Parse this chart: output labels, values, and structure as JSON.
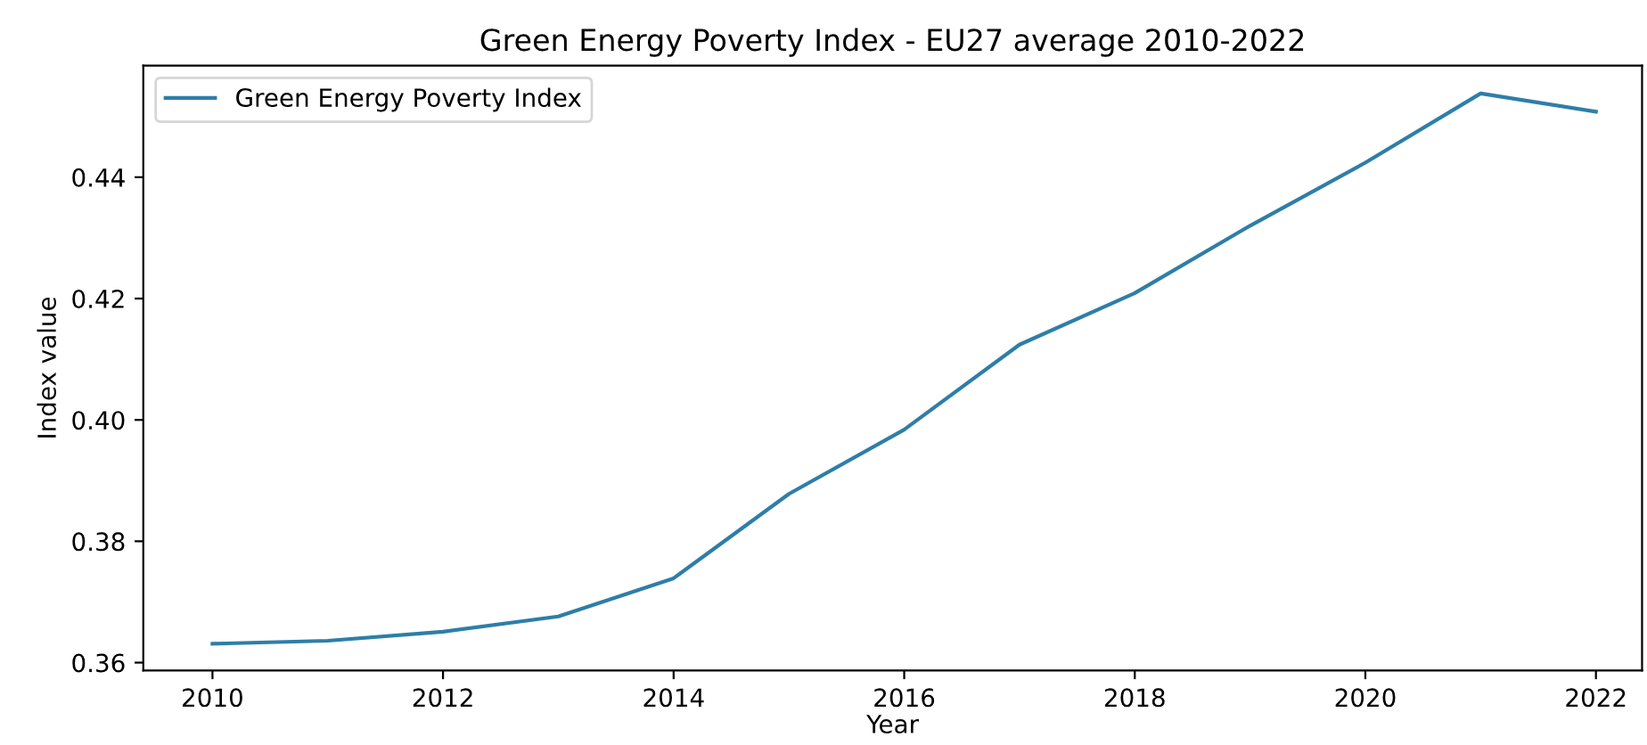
{
  "chart_data": {
    "type": "line",
    "title": "Green Energy Poverty Index - EU27 average 2010-2022",
    "xlabel": "Year",
    "ylabel": "Index value",
    "x": [
      2010,
      2011,
      2012,
      2013,
      2014,
      2015,
      2016,
      2017,
      2018,
      2019,
      2020,
      2021,
      2022
    ],
    "series": [
      {
        "name": "Green Energy Poverty Index",
        "color": "#2e7ea8",
        "values": [
          0.3631,
          0.3636,
          0.3651,
          0.3676,
          0.3739,
          0.3878,
          0.3984,
          0.4124,
          0.4209,
          0.432,
          0.4424,
          0.4538,
          0.4508
        ]
      }
    ],
    "xlim": [
      2009.4,
      2022.4
    ],
    "xticks": [
      2010,
      2012,
      2014,
      2016,
      2018,
      2020,
      2022
    ],
    "ylim": [
      0.3587,
      0.4584
    ],
    "yticks": [
      {
        "value": 0.36,
        "label": "0.36"
      },
      {
        "value": 0.38,
        "label": "0.38"
      },
      {
        "value": 0.4,
        "label": "0.40"
      },
      {
        "value": 0.42,
        "label": "0.42"
      },
      {
        "value": 0.44,
        "label": "0.44"
      }
    ],
    "grid": false,
    "legend": "top left",
    "marker": "none",
    "line_style": "solid"
  }
}
